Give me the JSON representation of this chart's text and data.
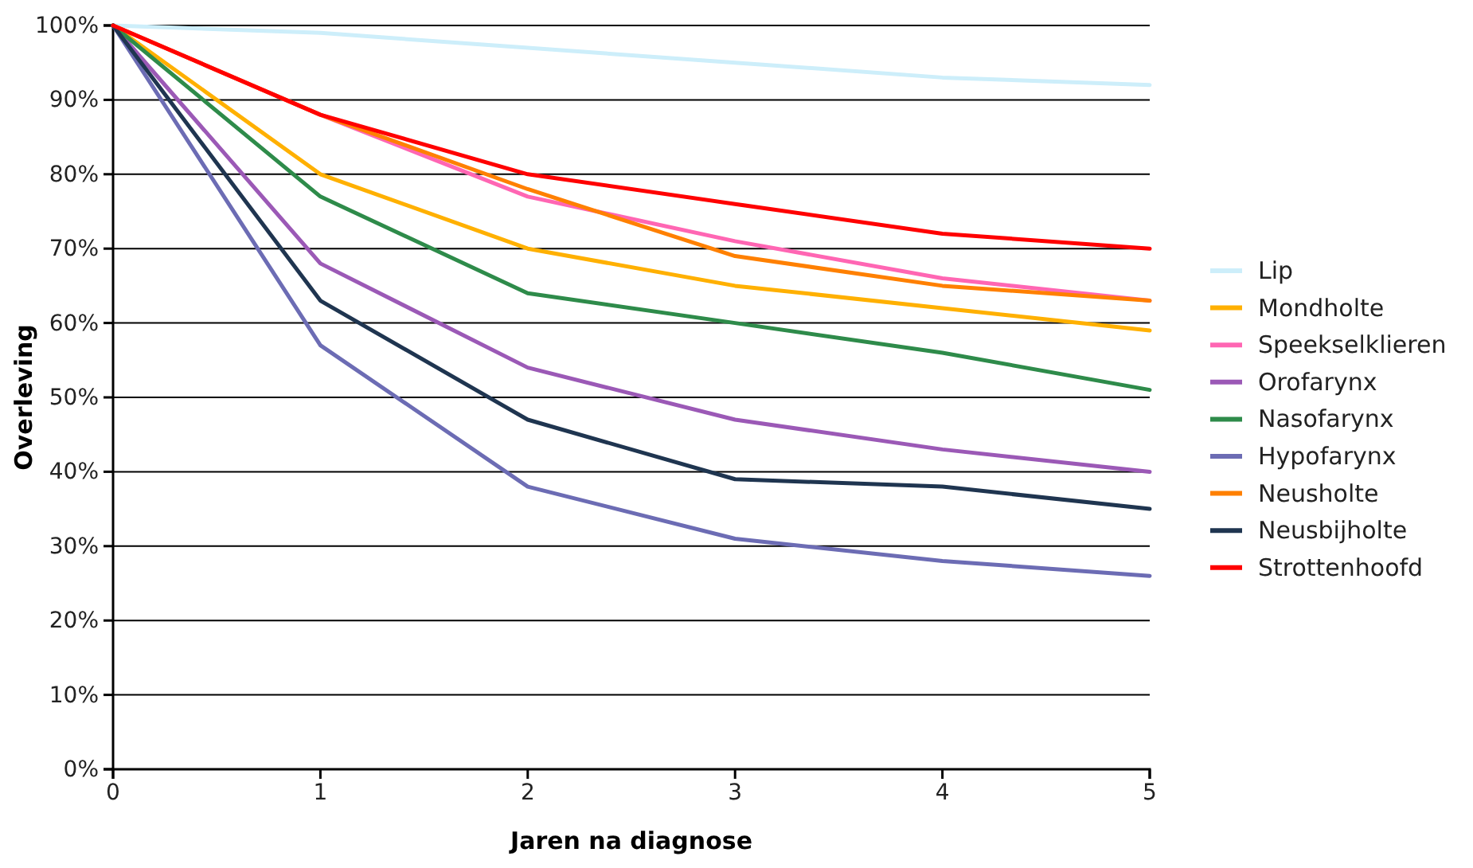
{
  "chart_data": {
    "type": "line",
    "xlabel": "Jaren na diagnose",
    "ylabel": "Overleving",
    "x": [
      0,
      1,
      2,
      3,
      4,
      5
    ],
    "xlim": [
      0,
      5
    ],
    "xticks": [
      0,
      1,
      2,
      3,
      4,
      5
    ],
    "ylim": [
      0,
      100
    ],
    "yticks": [
      {
        "value": 0,
        "label": "0%"
      },
      {
        "value": 10,
        "label": "10%"
      },
      {
        "value": 20,
        "label": "20%"
      },
      {
        "value": 30,
        "label": "30%"
      },
      {
        "value": 40,
        "label": "40%"
      },
      {
        "value": 50,
        "label": "50%"
      },
      {
        "value": 60,
        "label": "60%"
      },
      {
        "value": 70,
        "label": "70%"
      },
      {
        "value": 80,
        "label": "80%"
      },
      {
        "value": 90,
        "label": "90%"
      },
      {
        "value": 100,
        "label": "100%"
      }
    ],
    "grid": "y",
    "legend": "right",
    "marker": "none",
    "line_style": "solid",
    "series": [
      {
        "name": "Lip",
        "color": "#cdeefa",
        "values": [
          100,
          99,
          97,
          95,
          93,
          92
        ]
      },
      {
        "name": "Mondholte",
        "color": "#ffb000",
        "values": [
          100,
          80,
          70,
          65,
          62,
          59
        ]
      },
      {
        "name": "Speekselklieren",
        "color": "#ff66b3",
        "values": [
          100,
          88,
          77,
          71,
          66,
          63
        ]
      },
      {
        "name": "Orofarynx",
        "color": "#9b59b6",
        "values": [
          100,
          68,
          54,
          47,
          43,
          40
        ]
      },
      {
        "name": "Nasofarynx",
        "color": "#2e8b4a",
        "values": [
          100,
          77,
          64,
          60,
          56,
          51
        ]
      },
      {
        "name": "Hypofarynx",
        "color": "#6c6cb4",
        "values": [
          100,
          57,
          38,
          31,
          28,
          26
        ]
      },
      {
        "name": "Neusholte",
        "color": "#ff8000",
        "values": [
          100,
          88,
          78,
          69,
          65,
          63
        ]
      },
      {
        "name": "Neusbijholte",
        "color": "#1f3550",
        "values": [
          100,
          63,
          47,
          39,
          38,
          35
        ]
      },
      {
        "name": "Strottenhoofd",
        "color": "#ff0000",
        "values": [
          100,
          88,
          80,
          76,
          72,
          70
        ]
      }
    ]
  }
}
